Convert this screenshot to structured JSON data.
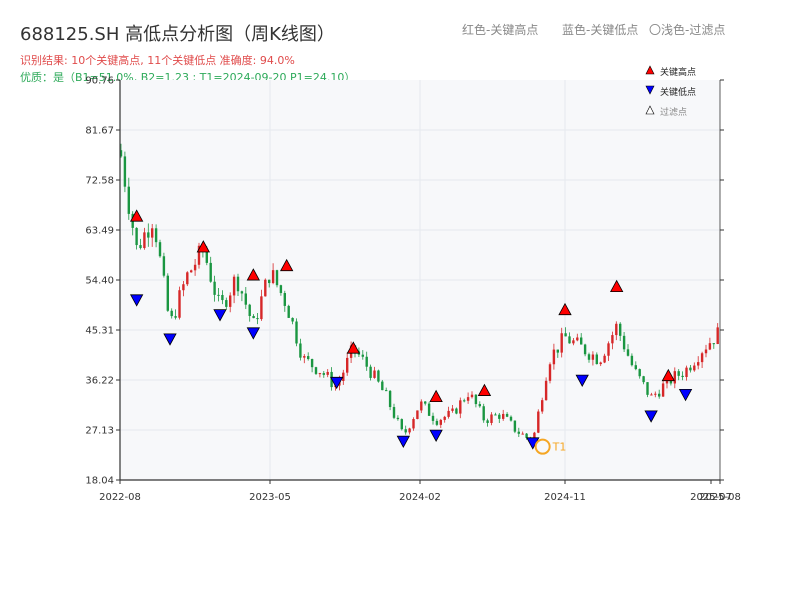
{
  "title": "688125.SH 高低点分析图（周K线图）",
  "legend_top": {
    "red": "红色-关键高点",
    "blue": "蓝色-关键低点",
    "light": "〇浅色-过滤点"
  },
  "info": {
    "line1": "识别结果: 10个关键高点, 11个关键低点  准确度: 94.0%",
    "line2": "优质：是（B1=51.0%, B2=1.23 ; T1=2024-09-20 P1=24.10）"
  },
  "colors": {
    "up": "#d62728",
    "down": "#1a9641",
    "high_marker": "#ff0000",
    "low_marker": "#0000ff",
    "t1_marker": "#f5a623",
    "grid": "#e6e9ee",
    "plot_bg": "#f7f8fa"
  },
  "chart_data": {
    "type": "candlestick",
    "ylim": [
      18.04,
      90.76
    ],
    "y_ticks": [
      "18.04",
      "27.13",
      "36.22",
      "45.31",
      "54.40",
      "63.49",
      "72.58",
      "81.67",
      "90.76"
    ],
    "x_ticks": [
      "2022-08",
      "2023-05",
      "2024-02",
      "2024-11",
      "2025-07",
      "2025-08"
    ],
    "legend": {
      "high": "关键高点",
      "low": "关键低点",
      "filtered": "过滤点"
    },
    "t1_label": "T1",
    "close_path": [
      [
        "2022-08",
        78
      ],
      [
        "2022-09",
        60
      ],
      [
        "2022-10",
        66
      ],
      [
        "2022-11",
        46
      ],
      [
        "2022-12",
        55
      ],
      [
        "2023-01",
        60
      ],
      [
        "2023-02",
        49
      ],
      [
        "2023-03",
        55
      ],
      [
        "2023-04",
        46
      ],
      [
        "2023-05",
        56
      ],
      [
        "2023-06",
        50
      ],
      [
        "2023-07",
        40
      ],
      [
        "2023-08",
        38
      ],
      [
        "2023-09",
        35
      ],
      [
        "2023-10",
        42
      ],
      [
        "2023-11",
        38
      ],
      [
        "2023-12",
        33
      ],
      [
        "2024-01",
        26
      ],
      [
        "2024-02",
        32
      ],
      [
        "2024-03",
        29
      ],
      [
        "2024-04",
        30
      ],
      [
        "2024-05",
        34
      ],
      [
        "2024-06",
        29
      ],
      [
        "2024-07",
        30
      ],
      [
        "2024-08",
        27
      ],
      [
        "2024-09",
        25
      ],
      [
        "2024-10",
        40
      ],
      [
        "2024-11",
        44
      ],
      [
        "2024-12",
        42
      ],
      [
        "2025-01",
        40
      ],
      [
        "2025-02",
        46
      ],
      [
        "2025-03",
        38
      ],
      [
        "2025-04",
        33
      ],
      [
        "2025-05",
        36
      ],
      [
        "2025-06",
        38
      ],
      [
        "2025-07",
        42
      ],
      [
        "2025-08",
        45
      ]
    ],
    "key_highs": [
      {
        "date": "2022-09",
        "price": 66.0
      },
      {
        "date": "2023-01",
        "price": 60.4
      },
      {
        "date": "2023-04",
        "price": 55.3
      },
      {
        "date": "2023-06",
        "price": 57.0
      },
      {
        "date": "2023-10",
        "price": 42.0
      },
      {
        "date": "2024-03",
        "price": 33.2
      },
      {
        "date": "2024-06",
        "price": 34.3
      },
      {
        "date": "2024-11",
        "price": 49.0
      },
      {
        "date": "2025-02",
        "price": 53.2
      },
      {
        "date": "2025-05",
        "price": 37.0
      }
    ],
    "key_lows": [
      {
        "date": "2022-09",
        "price": 50.8
      },
      {
        "date": "2022-11",
        "price": 43.7
      },
      {
        "date": "2023-02",
        "price": 48.1
      },
      {
        "date": "2023-04",
        "price": 44.8
      },
      {
        "date": "2023-09",
        "price": 35.8
      },
      {
        "date": "2024-01",
        "price": 25.1
      },
      {
        "date": "2024-03",
        "price": 26.2
      },
      {
        "date": "2024-09",
        "price": 24.8
      },
      {
        "date": "2024-12",
        "price": 36.2
      },
      {
        "date": "2025-04",
        "price": 29.7
      },
      {
        "date": "2025-06",
        "price": 33.6
      }
    ],
    "t1": {
      "date": "2024-09-20",
      "price": 24.1
    }
  }
}
